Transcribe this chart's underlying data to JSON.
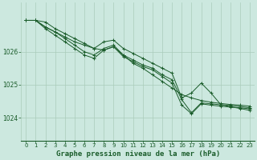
{
  "background_color": "#cce8df",
  "grid_color": "#aaccbb",
  "line_color": "#1a5c2a",
  "marker_color": "#1a5c2a",
  "xlabel": "Graphe pression niveau de la mer (hPa)",
  "xlabel_fontsize": 6.5,
  "xtick_fontsize": 5.0,
  "ytick_fontsize": 5.5,
  "yticks": [
    1024,
    1025,
    1026
  ],
  "ylim": [
    1023.3,
    1027.5
  ],
  "xlim": [
    -0.5,
    23.5
  ],
  "series": [
    [
      1026.95,
      1026.95,
      1026.9,
      1026.7,
      1026.55,
      1026.4,
      1026.25,
      1026.1,
      1026.05,
      1026.15,
      1025.9,
      1025.65,
      1025.5,
      1025.3,
      1025.1,
      1024.9,
      1024.7,
      1024.6,
      1024.52,
      1024.47,
      1024.43,
      1024.4,
      1024.38,
      1024.35
    ],
    [
      1026.95,
      1026.95,
      1026.75,
      1026.6,
      1026.4,
      1026.2,
      1026.0,
      1025.9,
      1026.1,
      1026.2,
      1025.9,
      1025.75,
      1025.6,
      1025.5,
      1025.3,
      1025.15,
      1024.55,
      1024.15,
      1024.45,
      1024.42,
      1024.39,
      1024.37,
      1024.34,
      1024.3
    ],
    [
      1026.95,
      1026.95,
      1026.75,
      1026.6,
      1026.45,
      1026.3,
      1026.2,
      1026.1,
      1026.3,
      1026.35,
      1026.1,
      1025.95,
      1025.8,
      1025.65,
      1025.5,
      1025.35,
      1024.6,
      1024.75,
      1025.05,
      1024.75,
      1024.4,
      1024.33,
      1024.28,
      1024.22
    ],
    [
      1026.95,
      1026.95,
      1026.7,
      1026.5,
      1026.3,
      1026.1,
      1025.9,
      1025.8,
      1026.05,
      1026.15,
      1025.85,
      1025.7,
      1025.55,
      1025.45,
      1025.25,
      1025.05,
      1024.38,
      1024.12,
      1024.42,
      1024.38,
      1024.35,
      1024.32,
      1024.3,
      1024.27
    ]
  ]
}
